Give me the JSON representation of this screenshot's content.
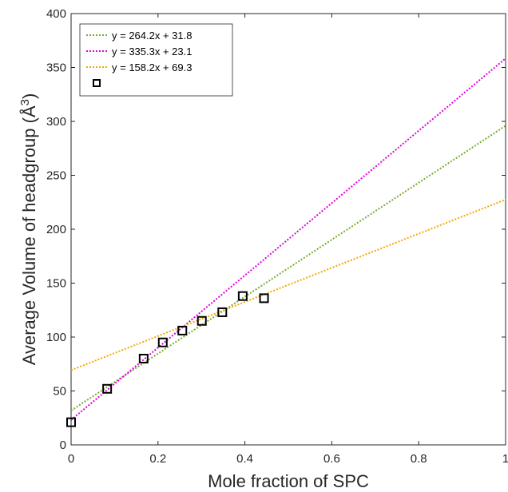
{
  "chart_data": {
    "type": "scatter",
    "xlabel": "Mole fraction of SPC",
    "ylabel": "Average Volume of headgroup (Å",
    "ylabel_sup": "3",
    "ylabel_close": ")",
    "xlim": [
      0,
      1
    ],
    "ylim": [
      0,
      400
    ],
    "x_ticks": [
      0,
      0.2,
      0.4,
      0.6,
      0.8,
      1
    ],
    "x_tick_labels": [
      "0",
      "0.2",
      "0.4",
      "0.6",
      "0.8",
      "1"
    ],
    "y_ticks": [
      0,
      50,
      100,
      150,
      200,
      250,
      300,
      350,
      400
    ],
    "y_tick_labels": [
      "0",
      "50",
      "100",
      "150",
      "200",
      "250",
      "300",
      "350",
      "400"
    ],
    "grid": false,
    "legend_position": "top-left",
    "fit_lines": [
      {
        "label": "y = 264.2x + 31.8",
        "slope": 264.2,
        "intercept": 31.8,
        "color": "#77ac30"
      },
      {
        "label": "y = 335.3x + 23.1",
        "slope": 335.3,
        "intercept": 23.1,
        "color": "#e000e0"
      },
      {
        "label": "y = 158.2x + 69.3",
        "slope": 158.2,
        "intercept": 69.3,
        "color": "#f2a900"
      }
    ],
    "scatter": {
      "label": "",
      "color": "#000000",
      "points": [
        {
          "x": 0.0,
          "y": 21
        },
        {
          "x": 0.083,
          "y": 52
        },
        {
          "x": 0.167,
          "y": 80
        },
        {
          "x": 0.211,
          "y": 95
        },
        {
          "x": 0.256,
          "y": 106
        },
        {
          "x": 0.301,
          "y": 115
        },
        {
          "x": 0.348,
          "y": 123
        },
        {
          "x": 0.395,
          "y": 138
        },
        {
          "x": 0.444,
          "y": 136
        }
      ]
    }
  }
}
